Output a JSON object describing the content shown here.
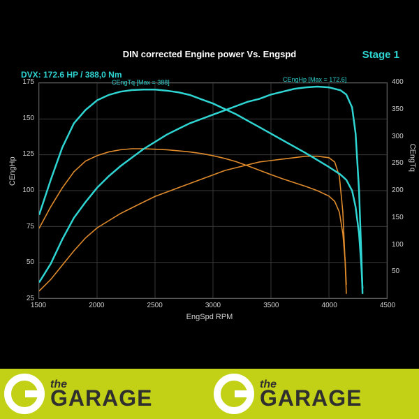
{
  "title": "DIN corrected Engine power Vs. Engspd",
  "stage_label": "Stage 1",
  "dvx_label": "DVX:  172.6 HP / 388,0 Nm",
  "annotations": {
    "tq": "CEngTq [Max = 388]",
    "hp": "CEngHp [Max = 172.6]"
  },
  "axes": {
    "x": {
      "label": "EngSpd RPM",
      "min": 1500,
      "max": 4500,
      "step": 500,
      "fontsize": 10
    },
    "yL": {
      "label": "CEngHp",
      "min": 25,
      "max": 175,
      "step": 25,
      "fontsize": 10
    },
    "yR": {
      "label": "CEngTq",
      "min": 0,
      "max": 400,
      "step": 50,
      "fontsize": 10
    }
  },
  "colors": {
    "bg": "#000000",
    "grid": "#3a3a3a",
    "axis_text": "#d0d0d0",
    "title_text": "#ffffff",
    "stage_text": "#2fd5d2",
    "dvx_text": "#2fd5d2",
    "series_tuned": "#2fd5d2",
    "series_stock": "#e08b2c",
    "footer_bg": "#c3d116",
    "footer_text": "#2f2f2f",
    "footer_logo": "#ffffff"
  },
  "series": {
    "tuned_tq": {
      "axis": "yR",
      "color": "#2fd5d2",
      "width": 2.5,
      "points": [
        [
          1500,
          155
        ],
        [
          1600,
          220
        ],
        [
          1700,
          280
        ],
        [
          1800,
          325
        ],
        [
          1900,
          350
        ],
        [
          2000,
          368
        ],
        [
          2100,
          378
        ],
        [
          2200,
          384
        ],
        [
          2300,
          387
        ],
        [
          2400,
          388
        ],
        [
          2500,
          388
        ],
        [
          2600,
          386
        ],
        [
          2700,
          383
        ],
        [
          2800,
          378
        ],
        [
          2900,
          370
        ],
        [
          3000,
          362
        ],
        [
          3100,
          352
        ],
        [
          3200,
          342
        ],
        [
          3300,
          330
        ],
        [
          3400,
          318
        ],
        [
          3500,
          306
        ],
        [
          3600,
          294
        ],
        [
          3700,
          282
        ],
        [
          3800,
          270
        ],
        [
          3900,
          257
        ],
        [
          4000,
          244
        ],
        [
          4100,
          230
        ],
        [
          4150,
          220
        ],
        [
          4200,
          200
        ],
        [
          4230,
          170
        ],
        [
          4260,
          120
        ],
        [
          4280,
          60
        ],
        [
          4290,
          18
        ]
      ]
    },
    "tuned_hp": {
      "axis": "yL",
      "color": "#2fd5d2",
      "width": 2.5,
      "points": [
        [
          1500,
          36
        ],
        [
          1600,
          49
        ],
        [
          1700,
          66
        ],
        [
          1800,
          81
        ],
        [
          1900,
          92
        ],
        [
          2000,
          102
        ],
        [
          2100,
          110
        ],
        [
          2200,
          117
        ],
        [
          2300,
          123
        ],
        [
          2400,
          129
        ],
        [
          2500,
          134
        ],
        [
          2600,
          139
        ],
        [
          2700,
          143
        ],
        [
          2800,
          147
        ],
        [
          2900,
          150
        ],
        [
          3000,
          153
        ],
        [
          3100,
          156
        ],
        [
          3200,
          159
        ],
        [
          3300,
          162
        ],
        [
          3400,
          164
        ],
        [
          3500,
          167
        ],
        [
          3600,
          169
        ],
        [
          3700,
          171
        ],
        [
          3800,
          172
        ],
        [
          3900,
          172.6
        ],
        [
          4000,
          172
        ],
        [
          4100,
          170
        ],
        [
          4150,
          167
        ],
        [
          4200,
          158
        ],
        [
          4230,
          140
        ],
        [
          4260,
          100
        ],
        [
          4280,
          55
        ],
        [
          4290,
          28
        ]
      ]
    },
    "stock_tq": {
      "axis": "yR",
      "color": "#e08b2c",
      "width": 1.6,
      "points": [
        [
          1500,
          130
        ],
        [
          1600,
          170
        ],
        [
          1700,
          205
        ],
        [
          1800,
          235
        ],
        [
          1900,
          255
        ],
        [
          2000,
          265
        ],
        [
          2100,
          272
        ],
        [
          2200,
          276
        ],
        [
          2300,
          278
        ],
        [
          2400,
          278
        ],
        [
          2500,
          277
        ],
        [
          2600,
          276
        ],
        [
          2700,
          274
        ],
        [
          2800,
          272
        ],
        [
          2900,
          269
        ],
        [
          3000,
          265
        ],
        [
          3100,
          260
        ],
        [
          3200,
          254
        ],
        [
          3300,
          246
        ],
        [
          3400,
          238
        ],
        [
          3500,
          230
        ],
        [
          3600,
          222
        ],
        [
          3700,
          215
        ],
        [
          3800,
          208
        ],
        [
          3900,
          200
        ],
        [
          4000,
          190
        ],
        [
          4050,
          180
        ],
        [
          4090,
          160
        ],
        [
          4120,
          120
        ],
        [
          4140,
          70
        ],
        [
          4150,
          25
        ]
      ]
    },
    "stock_hp": {
      "axis": "yL",
      "color": "#e08b2c",
      "width": 1.6,
      "points": [
        [
          1500,
          30
        ],
        [
          1600,
          38
        ],
        [
          1700,
          48
        ],
        [
          1800,
          58
        ],
        [
          1900,
          67
        ],
        [
          2000,
          74
        ],
        [
          2100,
          79
        ],
        [
          2200,
          84
        ],
        [
          2300,
          88
        ],
        [
          2400,
          92
        ],
        [
          2500,
          96
        ],
        [
          2600,
          99
        ],
        [
          2700,
          102
        ],
        [
          2800,
          105
        ],
        [
          2900,
          108
        ],
        [
          3000,
          111
        ],
        [
          3100,
          114
        ],
        [
          3200,
          116
        ],
        [
          3300,
          118
        ],
        [
          3400,
          120
        ],
        [
          3500,
          121
        ],
        [
          3600,
          122
        ],
        [
          3700,
          123
        ],
        [
          3800,
          124
        ],
        [
          3900,
          124
        ],
        [
          4000,
          123
        ],
        [
          4050,
          120
        ],
        [
          4090,
          110
        ],
        [
          4120,
          85
        ],
        [
          4140,
          50
        ],
        [
          4150,
          28
        ]
      ]
    }
  },
  "footer": {
    "bg": "#c3d116",
    "the": "the",
    "garage": "GARAGE",
    "text_color": "#2f2f2f",
    "logo_color": "#ffffff"
  },
  "typography": {
    "title_fontsize": 13,
    "stage_fontsize": 15,
    "dvx_fontsize": 12,
    "annotation_fontsize": 9
  }
}
